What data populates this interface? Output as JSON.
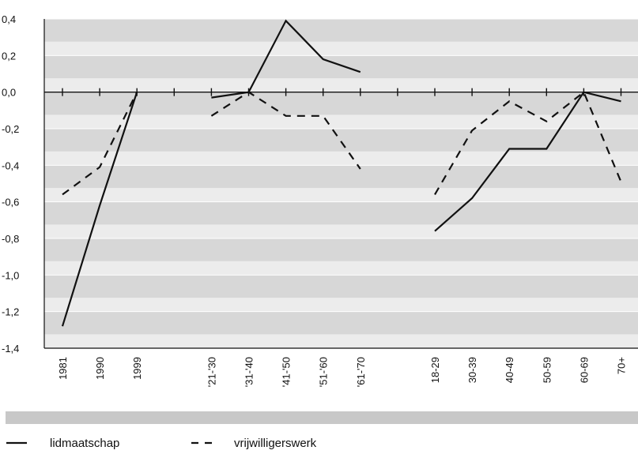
{
  "chart_data": {
    "type": "line",
    "ylim": [
      -1.4,
      0.4
    ],
    "y_ticks": [
      "0,4",
      "0,2",
      "0,0",
      "-0,2",
      "-0,4",
      "-0,6",
      "-0,8",
      "-1,0",
      "-1,2",
      "-1,4"
    ],
    "y_tick_values": [
      0.4,
      0.2,
      0.0,
      -0.2,
      -0.4,
      -0.6,
      -0.8,
      -1.0,
      -1.2,
      -1.4
    ],
    "grid": true,
    "legend_position": "bottom",
    "groups": [
      {
        "categories": [
          "1981",
          "1990",
          "1999"
        ]
      },
      {
        "categories": [
          "'21-'30",
          "'31-'40",
          "'41-'50",
          "'51-'60",
          "'61-'70"
        ]
      },
      {
        "categories": [
          "18-29",
          "30-39",
          "40-49",
          "50-59",
          "60-69",
          "70+"
        ]
      }
    ],
    "series": [
      {
        "name": "lidmaatschap",
        "style": "solid",
        "color": "#111111",
        "groups": [
          [
            -1.28,
            -0.62,
            0.0
          ],
          [
            -0.03,
            0.0,
            0.39,
            0.18,
            0.11
          ],
          [
            -0.76,
            -0.58,
            -0.31,
            -0.31,
            0.0,
            -0.05
          ]
        ]
      },
      {
        "name": "vrijwilligerswerk",
        "style": "dashed",
        "color": "#111111",
        "groups": [
          [
            -0.56,
            -0.41,
            0.0
          ],
          [
            -0.13,
            0.0,
            -0.13,
            -0.13,
            -0.42
          ],
          [
            -0.56,
            -0.21,
            -0.05,
            -0.16,
            0.0,
            -0.49
          ]
        ]
      }
    ],
    "colors": {
      "band_dark": "#d7d7d7",
      "band_light": "#ececec",
      "gridline": "#ffffff",
      "axis": "#111111",
      "footer_bar": "#c8c8c8"
    }
  }
}
